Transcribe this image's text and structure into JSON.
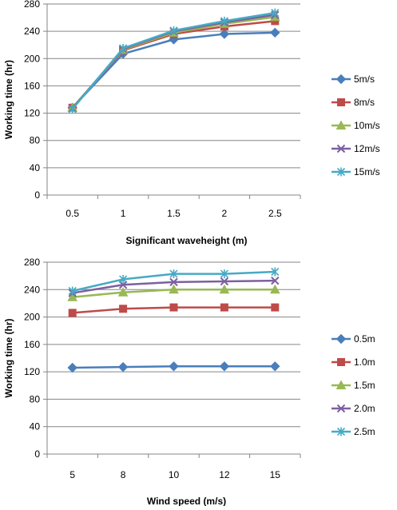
{
  "chart_data": [
    {
      "type": "line",
      "title": "",
      "xlabel": "Significant waveheight (m)",
      "ylabel": "Working time (hr)",
      "ylim": [
        0,
        280
      ],
      "yticks": [
        "0",
        "40",
        "80",
        "120",
        "160",
        "200",
        "240",
        "280"
      ],
      "categories": [
        "0.5",
        "1",
        "1.5",
        "2",
        "2.5"
      ],
      "grid": "horizontal",
      "legend_position": "right",
      "series": [
        {
          "name": "5m/s",
          "color": "#4a7ebb",
          "marker": "diamond",
          "values": [
            128,
            207,
            228,
            236,
            238
          ]
        },
        {
          "name": "8m/s",
          "color": "#be4b48",
          "marker": "square",
          "values": [
            128,
            212,
            236,
            247,
            255
          ]
        },
        {
          "name": "10m/s",
          "color": "#98b954",
          "marker": "triangle",
          "values": [
            128,
            213,
            238,
            251,
            261
          ]
        },
        {
          "name": "12m/s",
          "color": "#7d60a0",
          "marker": "x",
          "values": [
            127,
            214,
            240,
            253,
            264
          ]
        },
        {
          "name": "15m/s",
          "color": "#46aac5",
          "marker": "asterisk",
          "values": [
            126,
            215,
            241,
            255,
            267
          ]
        }
      ]
    },
    {
      "type": "line",
      "title": "",
      "xlabel": "Wind speed (m/s)",
      "ylabel": "Working time (hr)",
      "ylim": [
        0,
        280
      ],
      "yticks": [
        "0",
        "40",
        "80",
        "120",
        "160",
        "200",
        "240",
        "280"
      ],
      "categories": [
        "5",
        "8",
        "10",
        "12",
        "15"
      ],
      "grid": "horizontal",
      "legend_position": "right",
      "series": [
        {
          "name": "0.5m",
          "color": "#4a7ebb",
          "marker": "diamond",
          "values": [
            126,
            127,
            128,
            128,
            128
          ]
        },
        {
          "name": "1.0m",
          "color": "#be4b48",
          "marker": "square",
          "values": [
            206,
            212,
            214,
            214,
            214
          ]
        },
        {
          "name": "1.5m",
          "color": "#98b954",
          "marker": "triangle",
          "values": [
            229,
            236,
            240,
            240,
            240
          ]
        },
        {
          "name": "2.0m",
          "color": "#7d60a0",
          "marker": "x",
          "values": [
            235,
            247,
            251,
            252,
            253
          ]
        },
        {
          "name": "2.5m",
          "color": "#46aac5",
          "marker": "asterisk",
          "values": [
            238,
            255,
            263,
            263,
            266
          ]
        }
      ]
    }
  ]
}
